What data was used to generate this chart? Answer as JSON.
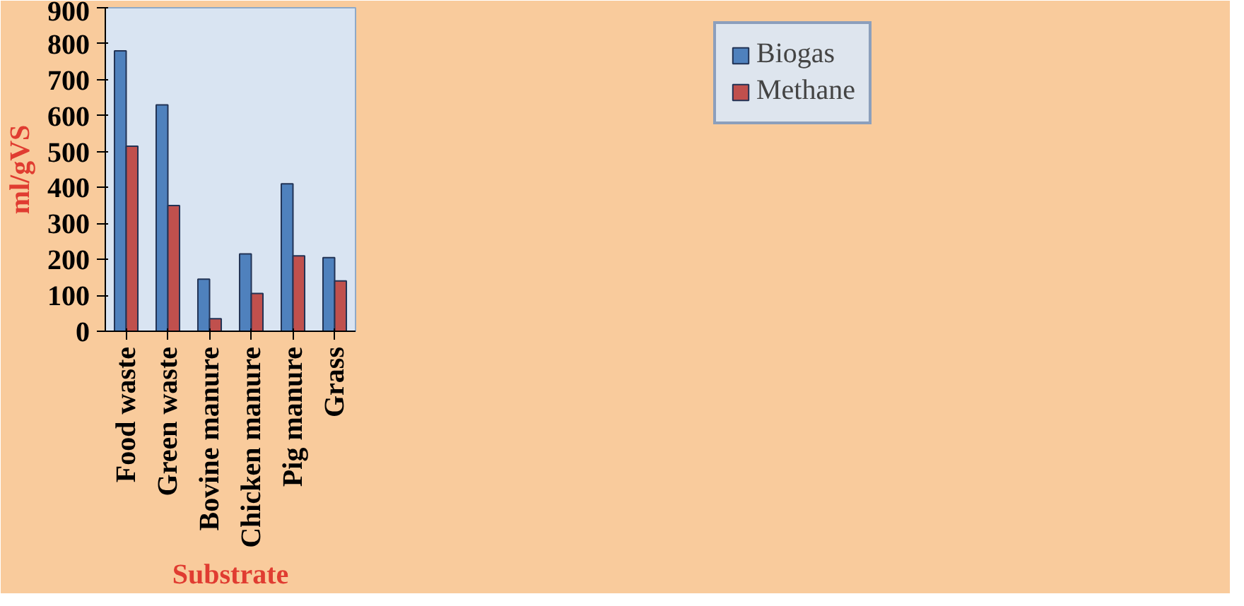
{
  "chart_data": {
    "type": "bar",
    "xlabel": "Substrate",
    "ylabel": "ml/gVS",
    "categories": [
      "Food waste",
      "Green waste",
      "Bovine manure",
      "Chicken manure",
      "Pig manure",
      "Grass"
    ],
    "series": [
      {
        "name": "Biogas",
        "color": "#4f81bd",
        "values": [
          780,
          630,
          145,
          215,
          410,
          205
        ]
      },
      {
        "name": "Methane",
        "color": "#c0504d",
        "values": [
          515,
          350,
          35,
          105,
          210,
          140
        ]
      }
    ],
    "ylim": [
      0,
      900
    ],
    "yticks": [
      0,
      100,
      200,
      300,
      400,
      500,
      600,
      700,
      800,
      900
    ],
    "grid": false,
    "legend": "top right"
  }
}
